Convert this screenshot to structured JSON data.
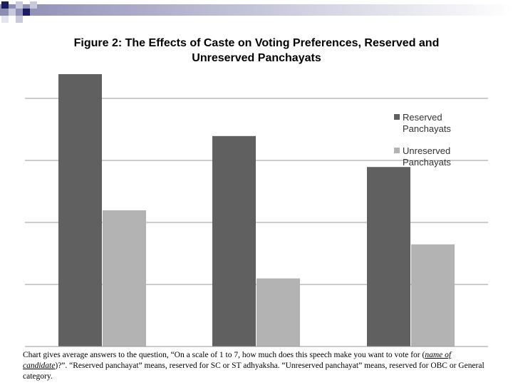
{
  "chart_data": {
    "type": "bar",
    "title": "Figure 2: The Effects of Caste on Voting Preferences, Reserved and Unreserved Panchayats",
    "categories": [
      "",
      "",
      ""
    ],
    "series": [
      {
        "name": "Reserved Panchayats",
        "color": "#606060",
        "values": [
          4.4,
          3.4,
          2.9
        ]
      },
      {
        "name": "Unreserved Panchayats",
        "color": "#b3b3b3",
        "values": [
          2.2,
          1.1,
          1.65
        ]
      }
    ],
    "ylim": [
      0,
      4.4
    ],
    "grid": true,
    "legend": "right"
  },
  "caption": {
    "part1": "Chart gives average answers to the question, “On a scale of 1 to 7, how much does this speech make you want to vote for (",
    "underlined": "name of candidate",
    "part2": ")?”.  “Reserved panchayat” means, reserved for SC or ST adhyaksha.  “Unreserved panchayat” means, reserved for OBC or General category."
  }
}
